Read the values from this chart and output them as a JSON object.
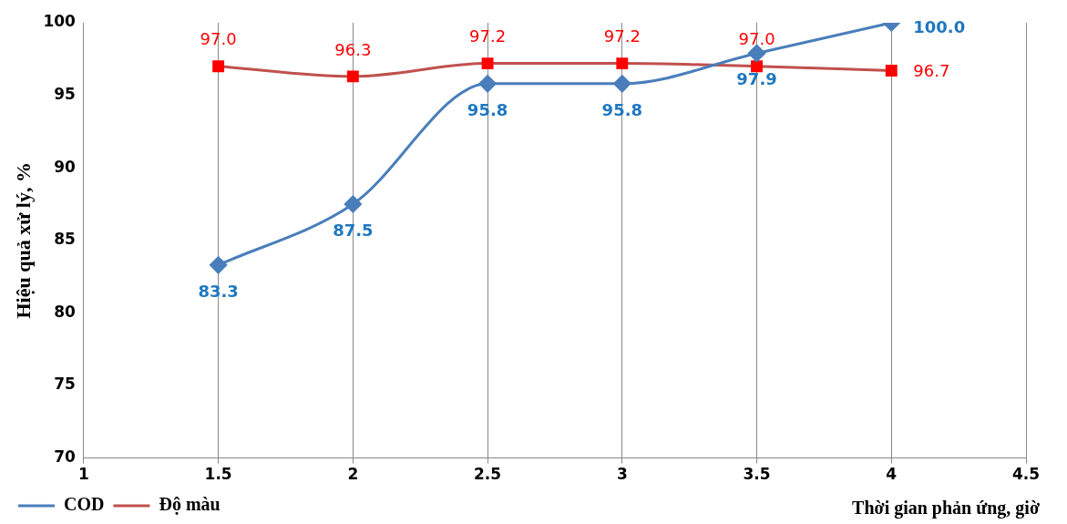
{
  "chart_data": {
    "type": "line",
    "xlabel": "Thời gian phản ứng, giờ",
    "ylabel": "Hiệu quả xử lý, %",
    "xlim": [
      1,
      4.5
    ],
    "xticks": [
      1,
      1.5,
      2,
      2.5,
      3,
      3.5,
      4,
      4.5
    ],
    "ylim": [
      70,
      100
    ],
    "yticks": [
      70,
      75,
      80,
      85,
      90,
      95,
      100
    ],
    "grid": "x",
    "legend": "bottom left",
    "x": [
      1.5,
      2,
      2.5,
      3,
      3.5,
      4
    ],
    "series": [
      {
        "name": "COD",
        "color": "#4a7ebb",
        "marker": "diamond",
        "values": [
          83.3,
          87.5,
          95.8,
          95.8,
          97.9,
          100.0
        ],
        "value_labels": [
          "83.3",
          "87.5",
          "95.8",
          "95.8",
          "97.9",
          "100.0"
        ]
      },
      {
        "name": "Độ màu",
        "color": "#c0504d",
        "marker": "square",
        "values": [
          97.0,
          96.3,
          97.2,
          97.2,
          97.0,
          96.7
        ],
        "value_labels": [
          "97.0",
          "96.3",
          "97.2",
          "97.2",
          "97.0",
          "96.7"
        ]
      }
    ]
  }
}
